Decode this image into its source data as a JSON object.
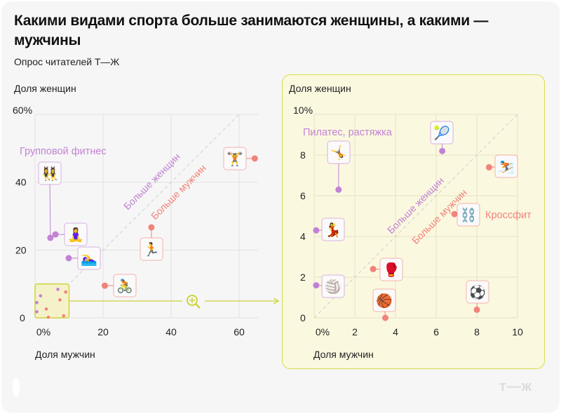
{
  "header": {
    "title": "Какими видами спорта больше занимаются женщины, а какими — мужчины",
    "subtitle": "Опрос читателей Т—Ж"
  },
  "footer": {
    "logo": "т—ж"
  },
  "colors": {
    "women": "#c183d3",
    "men": "#f2837a",
    "zoom_accent": "#cdd43a",
    "zoom_panel_bg": "#fbf8e0",
    "grid": "#e2e2e2"
  },
  "chart_data": [
    {
      "type": "scatter",
      "ylabel": "Доля женщин",
      "xlabel": "Доля мужчин",
      "xlim": [
        0,
        65
      ],
      "ylim": [
        0,
        60
      ],
      "xticks": [
        {
          "v": 0,
          "label": "0%"
        },
        {
          "v": 20,
          "label": "20"
        },
        {
          "v": 40,
          "label": "40"
        },
        {
          "v": 60,
          "label": "60"
        }
      ],
      "yticks": [
        {
          "v": 0,
          "label": "0"
        },
        {
          "v": 20,
          "label": "20"
        },
        {
          "v": 40,
          "label": "40"
        },
        {
          "v": 60,
          "label": "60%"
        }
      ],
      "grid": true,
      "diagonal": {
        "women_label": "Больше женщин",
        "men_label": "Больше мужчин"
      },
      "zoom_region": {
        "x": [
          0,
          10
        ],
        "y": [
          0,
          10
        ]
      },
      "points": [
        {
          "icon": "group-fitness-icon",
          "emoji": "👯‍♀️",
          "x": 4.5,
          "y": 23.6,
          "group": "women",
          "label": "Групповой фитнес"
        },
        {
          "icon": "yoga-icon",
          "emoji": "🧘‍♀️",
          "x": 6,
          "y": 24.6,
          "group": "women"
        },
        {
          "icon": "swimming-icon",
          "emoji": "🏊‍♀️",
          "x": 9.9,
          "y": 17.6,
          "group": "women"
        },
        {
          "icon": "cycling-icon",
          "emoji": "🚴",
          "x": 20.5,
          "y": 9.5,
          "group": "men"
        },
        {
          "icon": "running-icon",
          "emoji": "🏃",
          "x": 34.2,
          "y": 26.7,
          "group": "men"
        },
        {
          "icon": "weightlifting-icon",
          "emoji": "🏋️",
          "x": 64.6,
          "y": 47,
          "group": "men"
        }
      ]
    },
    {
      "type": "scatter",
      "ylabel": "Доля женщин",
      "xlabel": "Доля мужчин",
      "xlim": [
        0,
        10
      ],
      "ylim": [
        0,
        10
      ],
      "xticks": [
        {
          "v": 0,
          "label": "0%"
        },
        {
          "v": 2,
          "label": "2"
        },
        {
          "v": 4,
          "label": "4"
        },
        {
          "v": 6,
          "label": "6"
        },
        {
          "v": 8,
          "label": "8"
        },
        {
          "v": 10,
          "label": "10"
        }
      ],
      "yticks": [
        {
          "v": 0,
          "label": "0"
        },
        {
          "v": 2,
          "label": "2"
        },
        {
          "v": 4,
          "label": "4"
        },
        {
          "v": 6,
          "label": "6"
        },
        {
          "v": 8,
          "label": "8"
        },
        {
          "v": 10,
          "label": "10%"
        }
      ],
      "grid": true,
      "diagonal": {
        "women_label": "Больше женщин",
        "men_label": "Больше мужчин"
      },
      "points": [
        {
          "icon": "gymnastics-icon",
          "emoji": "🤸",
          "x": 1.2,
          "y": 6.3,
          "group": "women",
          "label": "Пилатес, растяжка"
        },
        {
          "icon": "tennis-icon",
          "emoji": "🎾",
          "x": 6.3,
          "y": 8.2,
          "group": "women"
        },
        {
          "icon": "skiing-icon",
          "emoji": "⛷️",
          "x": 8.6,
          "y": 7.4,
          "group": "men"
        },
        {
          "icon": "crossfit-icon",
          "emoji": "⛓️",
          "x": 6.9,
          "y": 5.1,
          "group": "men",
          "label": "Кроссфит"
        },
        {
          "icon": "dance-icon",
          "emoji": "💃",
          "x": 0.1,
          "y": 4.3,
          "group": "women"
        },
        {
          "icon": "boxing-icon",
          "emoji": "🥊",
          "x": 2.9,
          "y": 2.4,
          "group": "men"
        },
        {
          "icon": "volleyball-icon",
          "emoji": "🏐",
          "x": 0.1,
          "y": 1.6,
          "group": "women"
        },
        {
          "icon": "basketball-icon",
          "emoji": "🏀",
          "x": 3.5,
          "y": 0,
          "group": "men"
        },
        {
          "icon": "football-icon",
          "emoji": "⚽",
          "x": 8,
          "y": 0.4,
          "group": "men"
        }
      ]
    }
  ]
}
